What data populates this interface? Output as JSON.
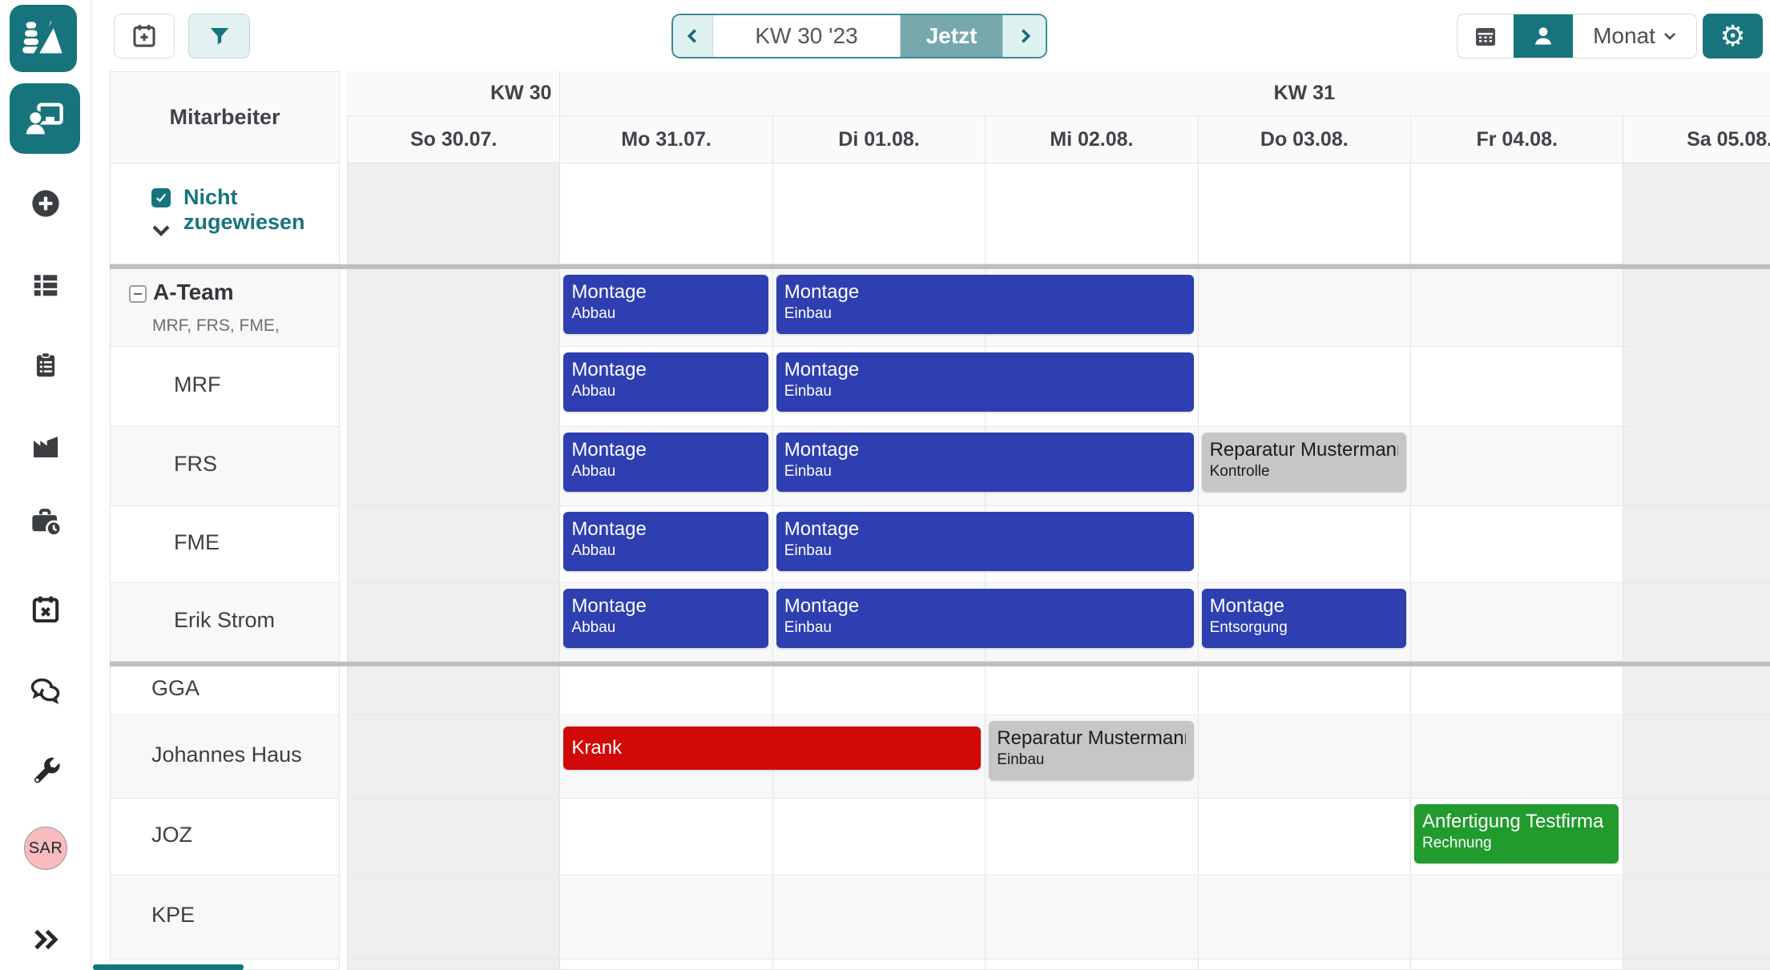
{
  "app": {
    "brand_color": "#17747c",
    "avatar": "SAR"
  },
  "toolbar": {
    "add_event_icon": "calendar-plus-icon",
    "filter_icon": "funnel-icon",
    "nav": {
      "prev": "‹",
      "label": "KW 30 '23",
      "today_label": "Jetzt",
      "next": "›"
    },
    "view_switch": {
      "calendar_icon": "calendar-icon",
      "resource_icon": "person-icon",
      "value": "Monat"
    },
    "settings_icon": "gear-icon"
  },
  "sidebar": {
    "icons": [
      "add-circle-icon",
      "list-icon",
      "clipboard-tasks-icon",
      "factory-icon",
      "briefcase-clock-icon",
      "calendar-x-icon",
      "chat-icon",
      "wrench-icon"
    ],
    "collapse_label": "»"
  },
  "scheduler": {
    "resource_header": "Mitarbeiter",
    "weeks": [
      {
        "label": "KW 30",
        "days": 1
      },
      {
        "label": "KW 31",
        "days": 7
      }
    ],
    "days": [
      "So 30.07.",
      "Mo 31.07.",
      "Di 01.08.",
      "Mi 02.08.",
      "Do 03.08.",
      "Fr 04.08.",
      "Sa 05.08."
    ],
    "weekend_day_indexes": [
      0,
      6
    ],
    "unassigned": {
      "label": "Nicht zugewiesen",
      "checked": true
    },
    "rows": [
      {
        "name": "A-Team",
        "sub": "MRF, FRS, FME,",
        "type": "group",
        "events": [
          {
            "title": "Montage",
            "subtitle": "Abbau",
            "color": "blue",
            "day": 1,
            "span": 1
          },
          {
            "title": "Montage",
            "subtitle": "Einbau",
            "color": "blue",
            "day": 2,
            "span": 2
          }
        ]
      },
      {
        "name": "MRF",
        "type": "child",
        "events": [
          {
            "title": "Montage",
            "subtitle": "Abbau",
            "color": "blue",
            "day": 1,
            "span": 1
          },
          {
            "title": "Montage",
            "subtitle": "Einbau",
            "color": "blue",
            "day": 2,
            "span": 2
          }
        ]
      },
      {
        "name": "FRS",
        "type": "child",
        "events": [
          {
            "title": "Montage",
            "subtitle": "Abbau",
            "color": "blue",
            "day": 1,
            "span": 1
          },
          {
            "title": "Montage",
            "subtitle": "Einbau",
            "color": "blue",
            "day": 2,
            "span": 2
          },
          {
            "title": "Reparatur Mustermann",
            "subtitle": "Kontrolle",
            "color": "gray",
            "day": 4,
            "span": 1
          }
        ]
      },
      {
        "name": "FME",
        "type": "child",
        "events": [
          {
            "title": "Montage",
            "subtitle": "Abbau",
            "color": "blue",
            "day": 1,
            "span": 1
          },
          {
            "title": "Montage",
            "subtitle": "Einbau",
            "color": "blue",
            "day": 2,
            "span": 2
          }
        ]
      },
      {
        "name": "Erik Strom",
        "type": "child",
        "separator_after": true,
        "events": [
          {
            "title": "Montage",
            "subtitle": "Abbau",
            "color": "blue",
            "day": 1,
            "span": 1
          },
          {
            "title": "Montage",
            "subtitle": "Einbau",
            "color": "blue",
            "day": 2,
            "span": 2
          },
          {
            "title": "Montage",
            "subtitle": "Entsorgung",
            "color": "blue",
            "day": 4,
            "span": 1
          }
        ]
      },
      {
        "name": "GGA",
        "type": "plain",
        "events": []
      },
      {
        "name": "Johannes Haus",
        "type": "plain",
        "events": [
          {
            "title": "Krank",
            "color": "red",
            "day": 1,
            "span": 2,
            "single": true
          },
          {
            "title": "Reparatur Mustermann",
            "subtitle": "Einbau",
            "color": "gray",
            "day": 3,
            "span": 1
          }
        ]
      },
      {
        "name": "JOZ",
        "type": "plain",
        "events": [
          {
            "title": "Anfertigung Testfirma",
            "subtitle": "Rechnung",
            "color": "green",
            "day": 5,
            "span": 1
          }
        ]
      },
      {
        "name": "KPE",
        "type": "plain",
        "events": []
      }
    ],
    "event_colors": {
      "blue": "#2e3fb1",
      "red": "#d20909",
      "gray": "#c6c6c6",
      "green": "#219b2e"
    }
  }
}
